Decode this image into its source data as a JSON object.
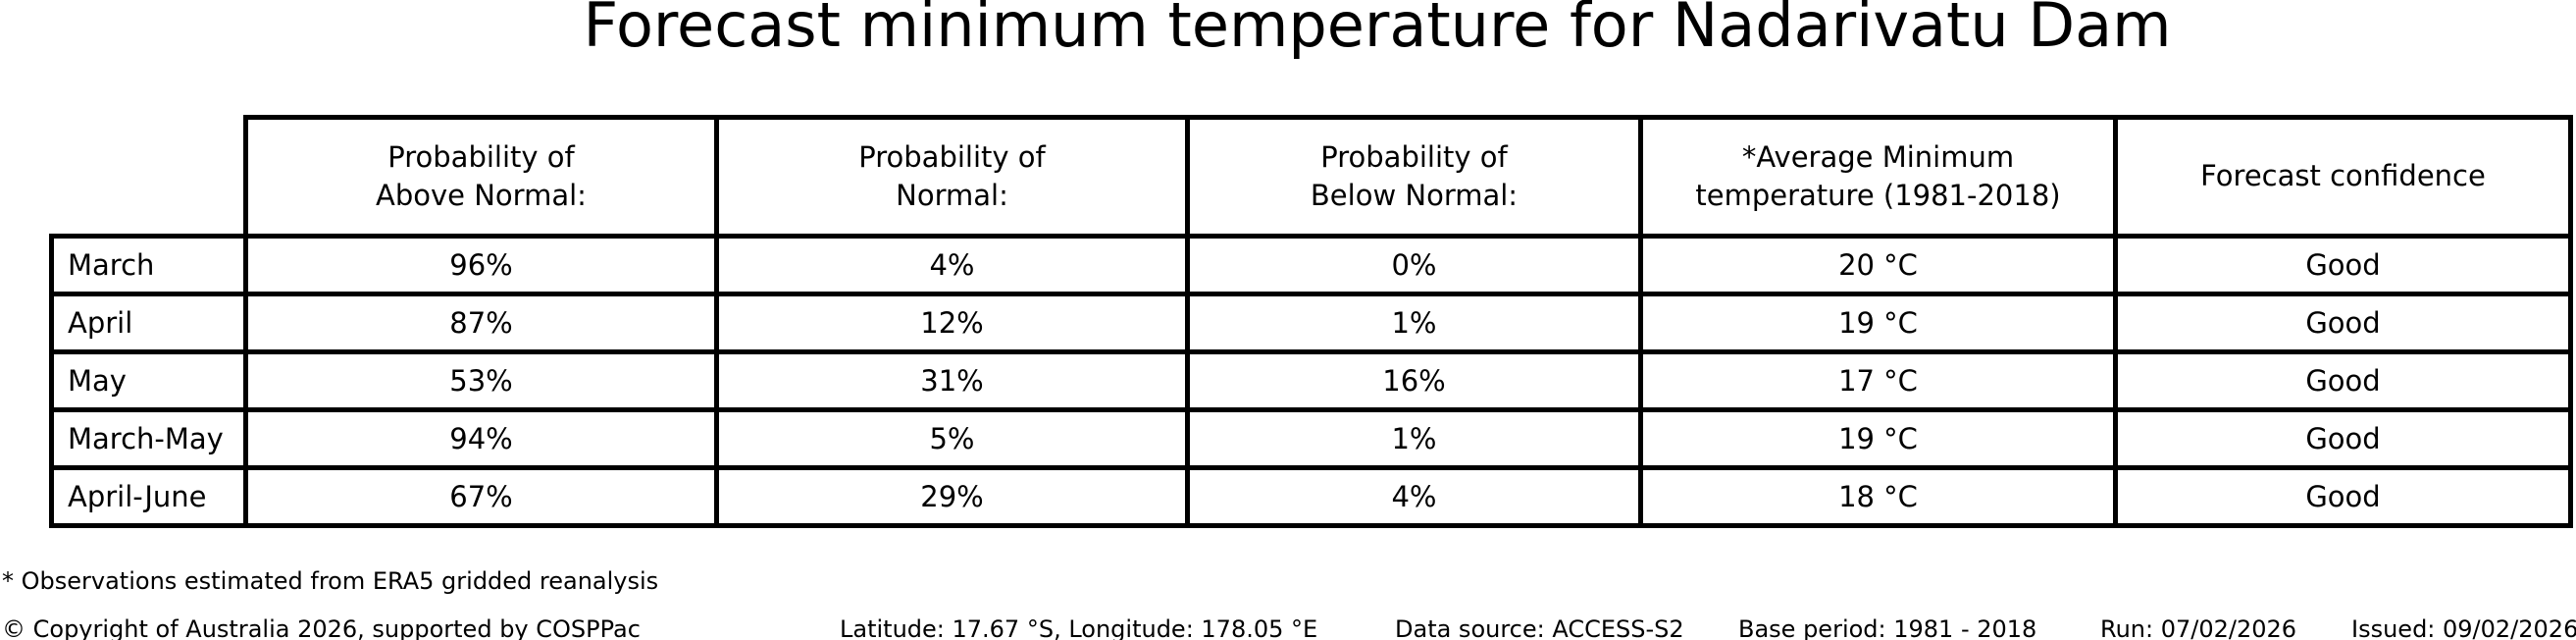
{
  "title": "Forecast minimum temperature for Nadarivatu Dam",
  "table": {
    "columns": [
      "Probability of\nAbove Normal:",
      "Probability of\nNormal:",
      "Probability of\nBelow Normal:",
      "*Average Minimum\ntemperature (1981-2018)",
      "Forecast confidence"
    ],
    "rows": [
      {
        "label": "March",
        "above": "96%",
        "normal": "4%",
        "below": "0%",
        "avg_temp": "20 °C",
        "confidence": "Good"
      },
      {
        "label": "April",
        "above": "87%",
        "normal": "12%",
        "below": "1%",
        "avg_temp": "19 °C",
        "confidence": "Good"
      },
      {
        "label": "May",
        "above": "53%",
        "normal": "31%",
        "below": "16%",
        "avg_temp": "17 °C",
        "confidence": "Good"
      },
      {
        "label": "March-May",
        "above": "94%",
        "normal": "5%",
        "below": "1%",
        "avg_temp": "19 °C",
        "confidence": "Good"
      },
      {
        "label": "April-June",
        "above": "67%",
        "normal": "29%",
        "below": "4%",
        "avg_temp": "18 °C",
        "confidence": "Good"
      }
    ]
  },
  "footnote": "* Observations estimated from ERA5 gridded reanalysis",
  "footer": {
    "copyright": "© Copyright of Australia 2026, supported by COSPPac",
    "location": "Latitude: 17.67 °S, Longitude: 178.05 °E",
    "data_source": "Data source: ACCESS-S2",
    "base_period": "Base period: 1981 - 2018",
    "run": "Run: 07/02/2026",
    "issued": "Issued: 09/02/2026"
  },
  "chart_data": {
    "type": "table",
    "title": "Forecast minimum temperature for Nadarivatu Dam",
    "categories": [
      "March",
      "April",
      "May",
      "March-May",
      "April-June"
    ],
    "series": [
      {
        "name": "Probability of Above Normal (%)",
        "values": [
          96,
          87,
          53,
          94,
          67
        ]
      },
      {
        "name": "Probability of Normal (%)",
        "values": [
          4,
          12,
          31,
          5,
          29
        ]
      },
      {
        "name": "Probability of Below Normal (%)",
        "values": [
          0,
          1,
          16,
          1,
          4
        ]
      },
      {
        "name": "Average Minimum temperature 1981-2018 (°C)",
        "values": [
          20,
          19,
          17,
          19,
          18
        ]
      },
      {
        "name": "Forecast confidence",
        "values": [
          "Good",
          "Good",
          "Good",
          "Good",
          "Good"
        ]
      }
    ],
    "colors": {
      "text": "#000000",
      "border": "#000000",
      "background": "#ffffff"
    }
  }
}
